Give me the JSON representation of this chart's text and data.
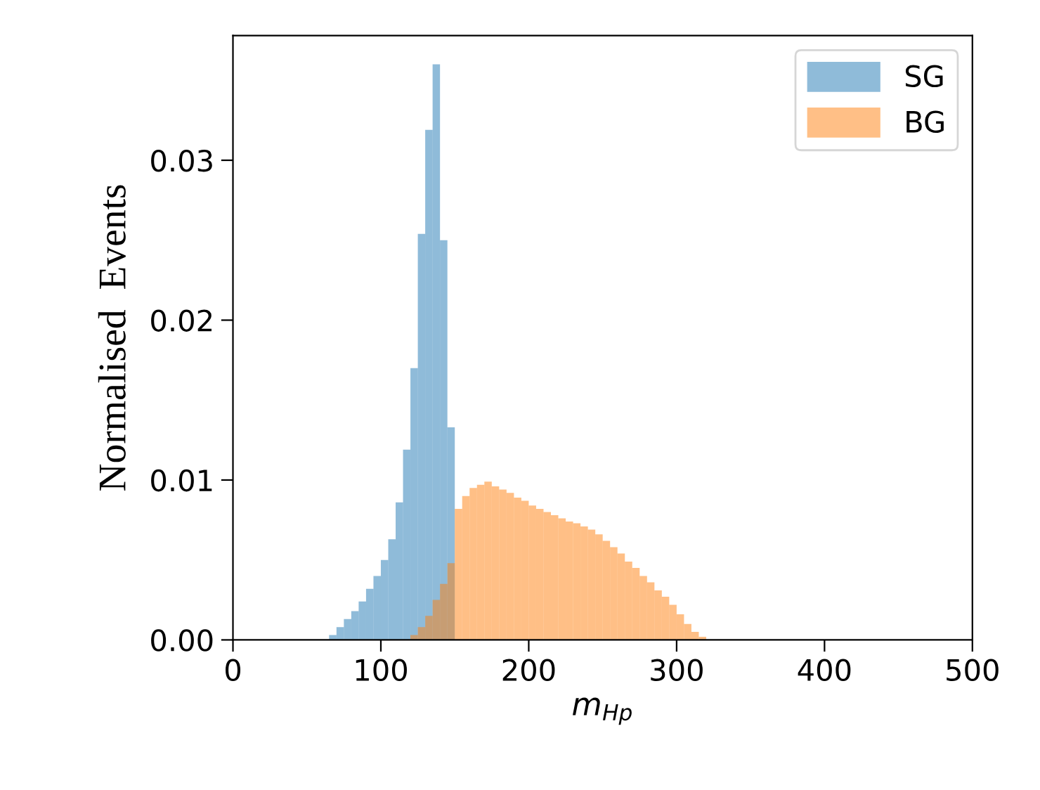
{
  "chart_data": {
    "type": "histogram",
    "xlabel": "m$_{Hp}$",
    "ylabel": "Normalised  Events",
    "xlim": [
      0,
      500
    ],
    "xticks": [
      0,
      100,
      200,
      300,
      400,
      500
    ],
    "ylim": [
      0,
      0.0378
    ],
    "yticks": [
      {
        "value": 0,
        "label": "0.00"
      },
      {
        "value": 0.01,
        "label": "0.01"
      },
      {
        "value": 0.02,
        "label": "0.02"
      },
      {
        "value": 0.03,
        "label": "0.03"
      }
    ],
    "legend": "top right",
    "bins": [
      65,
      70,
      75,
      80,
      85,
      90,
      95,
      100,
      105,
      110,
      115,
      120,
      125,
      130,
      135,
      140,
      145,
      150,
      155,
      160,
      165,
      170,
      175,
      180,
      185,
      190,
      195,
      200,
      205,
      210,
      215,
      220,
      225,
      230,
      235,
      240,
      245,
      250,
      255,
      260,
      265,
      270,
      275,
      280,
      285,
      290,
      295,
      300,
      305,
      310,
      315,
      320
    ],
    "series": [
      {
        "name": "SG",
        "color": "#1f77b4",
        "values": [
          0.0003,
          0.0008,
          0.0013,
          0.0018,
          0.0024,
          0.0032,
          0.004,
          0.005,
          0.0063,
          0.0086,
          0.0119,
          0.017,
          0.0254,
          0.0319,
          0.036,
          0.025,
          0.0133,
          null,
          null,
          null,
          null,
          null,
          null,
          null,
          null,
          null,
          null,
          null,
          null,
          null,
          null,
          null,
          null,
          null,
          null,
          null,
          null,
          null,
          null,
          null,
          null,
          null,
          null,
          null,
          null,
          null,
          null,
          null,
          null,
          null,
          null
        ]
      },
      {
        "name": "BG",
        "color": "#ff7f0e",
        "values": [
          null,
          null,
          null,
          null,
          null,
          null,
          null,
          null,
          null,
          null,
          null,
          0.0003,
          0.0008,
          0.0015,
          0.0025,
          0.0035,
          0.0048,
          0.0082,
          0.009,
          0.0095,
          0.0097,
          0.0099,
          0.0096,
          0.0094,
          0.0092,
          0.0089,
          0.0087,
          0.0084,
          0.0082,
          0.008,
          0.0078,
          0.0076,
          0.0074,
          0.0073,
          0.0071,
          0.0069,
          0.0066,
          0.0062,
          0.0058,
          0.0054,
          0.0049,
          0.0045,
          0.004,
          0.0036,
          0.0031,
          0.0027,
          0.0022,
          0.0016,
          0.001,
          0.0005,
          0.0002
        ]
      }
    ]
  }
}
